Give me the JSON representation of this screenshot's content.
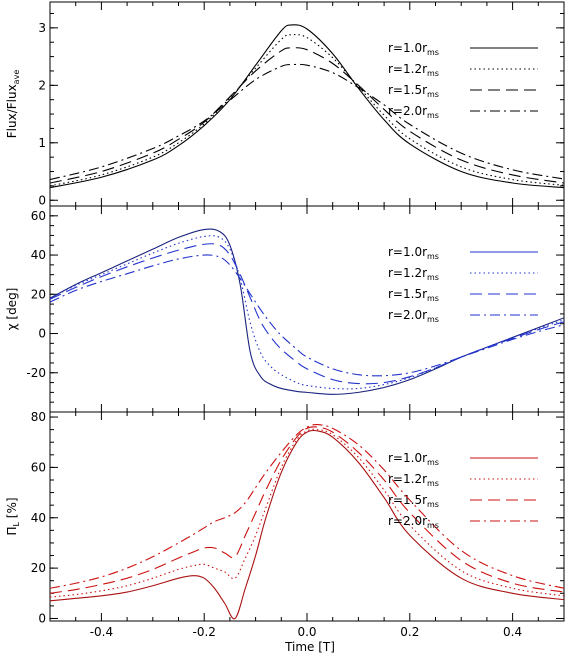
{
  "chart_data": {
    "type": "line",
    "xlabel": "Time [T]",
    "xlim": [
      -0.5,
      0.5
    ],
    "xticks": [
      "-0.4",
      "-0.2",
      "0.0",
      "0.2",
      "0.4"
    ],
    "legend_position": "top-right",
    "panels": [
      {
        "ylabel_main": "Flux/Flux",
        "ylabel_sub": "ave",
        "ylim": [
          -0.1,
          3.45
        ],
        "yticks": [
          "0",
          "1",
          "2",
          "3"
        ],
        "color": "#000000",
        "series": [
          {
            "label_main": "r=1.0r",
            "label_sub": "ms",
            "style": "solid",
            "x": [
              -0.5,
              -0.4,
              -0.3,
              -0.25,
              -0.2,
              -0.15,
              -0.1,
              -0.05,
              -0.03,
              0.0,
              0.05,
              0.1,
              0.15,
              0.2,
              0.3,
              0.4,
              0.5
            ],
            "y": [
              0.22,
              0.4,
              0.7,
              0.95,
              1.3,
              1.75,
              2.35,
              2.95,
              3.05,
              2.98,
              2.55,
              1.95,
              1.4,
              0.98,
              0.5,
              0.3,
              0.22
            ]
          },
          {
            "label_main": "r=1.2r",
            "label_sub": "ms",
            "style": "dotted",
            "x": [
              -0.5,
              -0.4,
              -0.3,
              -0.25,
              -0.2,
              -0.15,
              -0.1,
              -0.05,
              -0.03,
              0.0,
              0.05,
              0.1,
              0.15,
              0.2,
              0.3,
              0.4,
              0.5
            ],
            "y": [
              0.25,
              0.44,
              0.75,
              1.0,
              1.33,
              1.78,
              2.3,
              2.8,
              2.88,
              2.83,
              2.48,
              1.98,
              1.48,
              1.07,
              0.58,
              0.36,
              0.26
            ]
          },
          {
            "label_main": "r=1.5r",
            "label_sub": "ms",
            "style": "dashed",
            "x": [
              -0.5,
              -0.4,
              -0.3,
              -0.25,
              -0.2,
              -0.15,
              -0.1,
              -0.05,
              -0.03,
              0.0,
              0.05,
              0.1,
              0.15,
              0.2,
              0.3,
              0.4,
              0.5
            ],
            "y": [
              0.3,
              0.5,
              0.82,
              1.06,
              1.36,
              1.8,
              2.25,
              2.6,
              2.65,
              2.62,
              2.38,
              2.0,
              1.58,
              1.2,
              0.7,
              0.44,
              0.3
            ]
          },
          {
            "label_main": "r=2.0r",
            "label_sub": "ms",
            "style": "dashdot",
            "x": [
              -0.5,
              -0.4,
              -0.3,
              -0.25,
              -0.2,
              -0.15,
              -0.1,
              -0.05,
              -0.03,
              0.0,
              0.05,
              0.1,
              0.15,
              0.2,
              0.3,
              0.4,
              0.5
            ],
            "y": [
              0.36,
              0.58,
              0.9,
              1.12,
              1.38,
              1.74,
              2.1,
              2.33,
              2.36,
              2.35,
              2.22,
              1.96,
              1.66,
              1.32,
              0.82,
              0.53,
              0.37
            ]
          }
        ]
      },
      {
        "ylabel_main": "χ [deg]",
        "ylabel_sub": "",
        "ylim": [
          -40,
          65
        ],
        "yticks": [
          "-20",
          "0",
          "20",
          "40",
          "60"
        ],
        "color": "#2233cc",
        "series": [
          {
            "label_main": "r=1.0r",
            "label_sub": "ms",
            "style": "solid",
            "x": [
              -0.5,
              -0.45,
              -0.4,
              -0.35,
              -0.3,
              -0.25,
              -0.2,
              -0.17,
              -0.15,
              -0.13,
              -0.11,
              -0.09,
              -0.07,
              -0.05,
              -0.02,
              0.0,
              0.05,
              0.1,
              0.15,
              0.2,
              0.25,
              0.3,
              0.35,
              0.4,
              0.45,
              0.5
            ],
            "y": [
              18,
              25,
              31,
              37,
              43,
              49,
              53,
              52,
              45,
              25,
              -10,
              -22,
              -26,
              -28,
              -29.5,
              -30,
              -31,
              -30,
              -27.5,
              -23.5,
              -18,
              -12,
              -7,
              -2,
              3,
              8
            ]
          },
          {
            "label_main": "r=1.2r",
            "label_sub": "ms",
            "style": "dotted",
            "x": [
              -0.5,
              -0.45,
              -0.4,
              -0.35,
              -0.3,
              -0.25,
              -0.2,
              -0.17,
              -0.15,
              -0.13,
              -0.11,
              -0.09,
              -0.07,
              -0.05,
              -0.02,
              0.0,
              0.05,
              0.1,
              0.15,
              0.2,
              0.25,
              0.3,
              0.35,
              0.4,
              0.45,
              0.5
            ],
            "y": [
              18,
              24.5,
              30,
              35.5,
              41,
              46,
              49.5,
              49,
              43,
              28,
              5,
              -10,
              -17,
              -21,
              -25,
              -26.5,
              -28,
              -28,
              -26,
              -22.5,
              -17.5,
              -12,
              -7,
              -2,
              2.5,
              7
            ]
          },
          {
            "label_main": "r=1.5r",
            "label_sub": "ms",
            "style": "dashed",
            "x": [
              -0.5,
              -0.45,
              -0.4,
              -0.35,
              -0.3,
              -0.25,
              -0.2,
              -0.17,
              -0.15,
              -0.13,
              -0.11,
              -0.09,
              -0.07,
              -0.05,
              -0.02,
              0.0,
              0.05,
              0.1,
              0.15,
              0.2,
              0.25,
              0.3,
              0.35,
              0.4,
              0.45,
              0.5
            ],
            "y": [
              17.5,
              23.5,
              29,
              34,
              38.5,
              42.5,
              45.5,
              45,
              40,
              30,
              18,
              6,
              -2,
              -8,
              -14.5,
              -18,
              -23.5,
              -25.5,
              -25,
              -22,
              -17.5,
              -12,
              -7,
              -2.5,
              2,
              6
            ]
          },
          {
            "label_main": "r=2.0r",
            "label_sub": "ms",
            "style": "dashdot",
            "x": [
              -0.5,
              -0.45,
              -0.4,
              -0.35,
              -0.3,
              -0.25,
              -0.2,
              -0.17,
              -0.15,
              -0.13,
              -0.11,
              -0.09,
              -0.07,
              -0.05,
              -0.02,
              0.0,
              0.05,
              0.1,
              0.15,
              0.2,
              0.25,
              0.3,
              0.35,
              0.4,
              0.45,
              0.5
            ],
            "y": [
              16,
              22,
              26.5,
              30.5,
              34.5,
              38,
              40,
              39,
              35,
              28,
              20,
              12,
              5,
              -1,
              -8,
              -12,
              -18,
              -21,
              -21.5,
              -20,
              -16.5,
              -12,
              -7.5,
              -3,
              1,
              4.5
            ]
          }
        ]
      },
      {
        "ylabel_main": "Π",
        "ylabel_sub": "L",
        "ylabel_suffix": " [%]",
        "ylim": [
          -1,
          82
        ],
        "yticks": [
          "0",
          "20",
          "40",
          "60",
          "80"
        ],
        "color": "#cc1111",
        "series": [
          {
            "label_main": "r=1.0r",
            "label_sub": "ms",
            "style": "solid",
            "x": [
              -0.5,
              -0.45,
              -0.4,
              -0.35,
              -0.3,
              -0.25,
              -0.22,
              -0.2,
              -0.18,
              -0.16,
              -0.14,
              -0.12,
              -0.1,
              -0.08,
              -0.05,
              -0.02,
              0.0,
              0.02,
              0.05,
              0.1,
              0.15,
              0.2,
              0.3,
              0.4,
              0.5
            ],
            "y": [
              7,
              8,
              9,
              10.5,
              13,
              16,
              17,
              16,
              12,
              6,
              0,
              12,
              25,
              40,
              58,
              70,
              74,
              74.5,
              72,
              62,
              48,
              33,
              16,
              10,
              7.5
            ]
          },
          {
            "label_main": "r=1.2r",
            "label_sub": "ms",
            "style": "dotted",
            "x": [
              -0.5,
              -0.45,
              -0.4,
              -0.35,
              -0.3,
              -0.25,
              -0.22,
              -0.2,
              -0.18,
              -0.16,
              -0.14,
              -0.12,
              -0.1,
              -0.08,
              -0.05,
              -0.02,
              0.0,
              0.02,
              0.05,
              0.1,
              0.15,
              0.2,
              0.3,
              0.4,
              0.5
            ],
            "y": [
              8.5,
              9.5,
              11,
              13,
              16,
              19.5,
              21,
              21.5,
              20,
              18.5,
              16,
              24,
              33,
              44,
              60,
              71,
              74.5,
              75,
              73,
              64,
              51,
              37,
              19,
              12,
              9
            ]
          },
          {
            "label_main": "r=1.5r",
            "label_sub": "ms",
            "style": "dashed",
            "x": [
              -0.5,
              -0.45,
              -0.4,
              -0.35,
              -0.3,
              -0.25,
              -0.22,
              -0.2,
              -0.18,
              -0.16,
              -0.14,
              -0.12,
              -0.1,
              -0.08,
              -0.05,
              -0.02,
              0.0,
              0.02,
              0.05,
              0.1,
              0.15,
              0.2,
              0.3,
              0.4,
              0.5
            ],
            "y": [
              10,
              11.5,
              13.5,
              16,
              19.5,
              24,
              26.5,
              28,
              28,
              26,
              24.5,
              33,
              42,
              51,
              63,
              72,
              75.5,
              76,
              74,
              66,
              55,
              42,
              23,
              14,
              10.5
            ]
          },
          {
            "label_main": "r=2.0r",
            "label_sub": "ms",
            "style": "dashdot",
            "x": [
              -0.5,
              -0.45,
              -0.4,
              -0.35,
              -0.3,
              -0.25,
              -0.22,
              -0.2,
              -0.18,
              -0.16,
              -0.14,
              -0.12,
              -0.1,
              -0.08,
              -0.05,
              -0.02,
              0.0,
              0.02,
              0.05,
              0.1,
              0.15,
              0.2,
              0.3,
              0.4,
              0.5
            ],
            "y": [
              12,
              14,
              16.5,
              20,
              24.5,
              30,
              33.5,
              36,
              38.5,
              40,
              42,
              46,
              52,
              58,
              66,
              73,
              76,
              77,
              75.5,
              69,
              59,
              47,
              27,
              17,
              12
            ]
          }
        ]
      }
    ]
  }
}
